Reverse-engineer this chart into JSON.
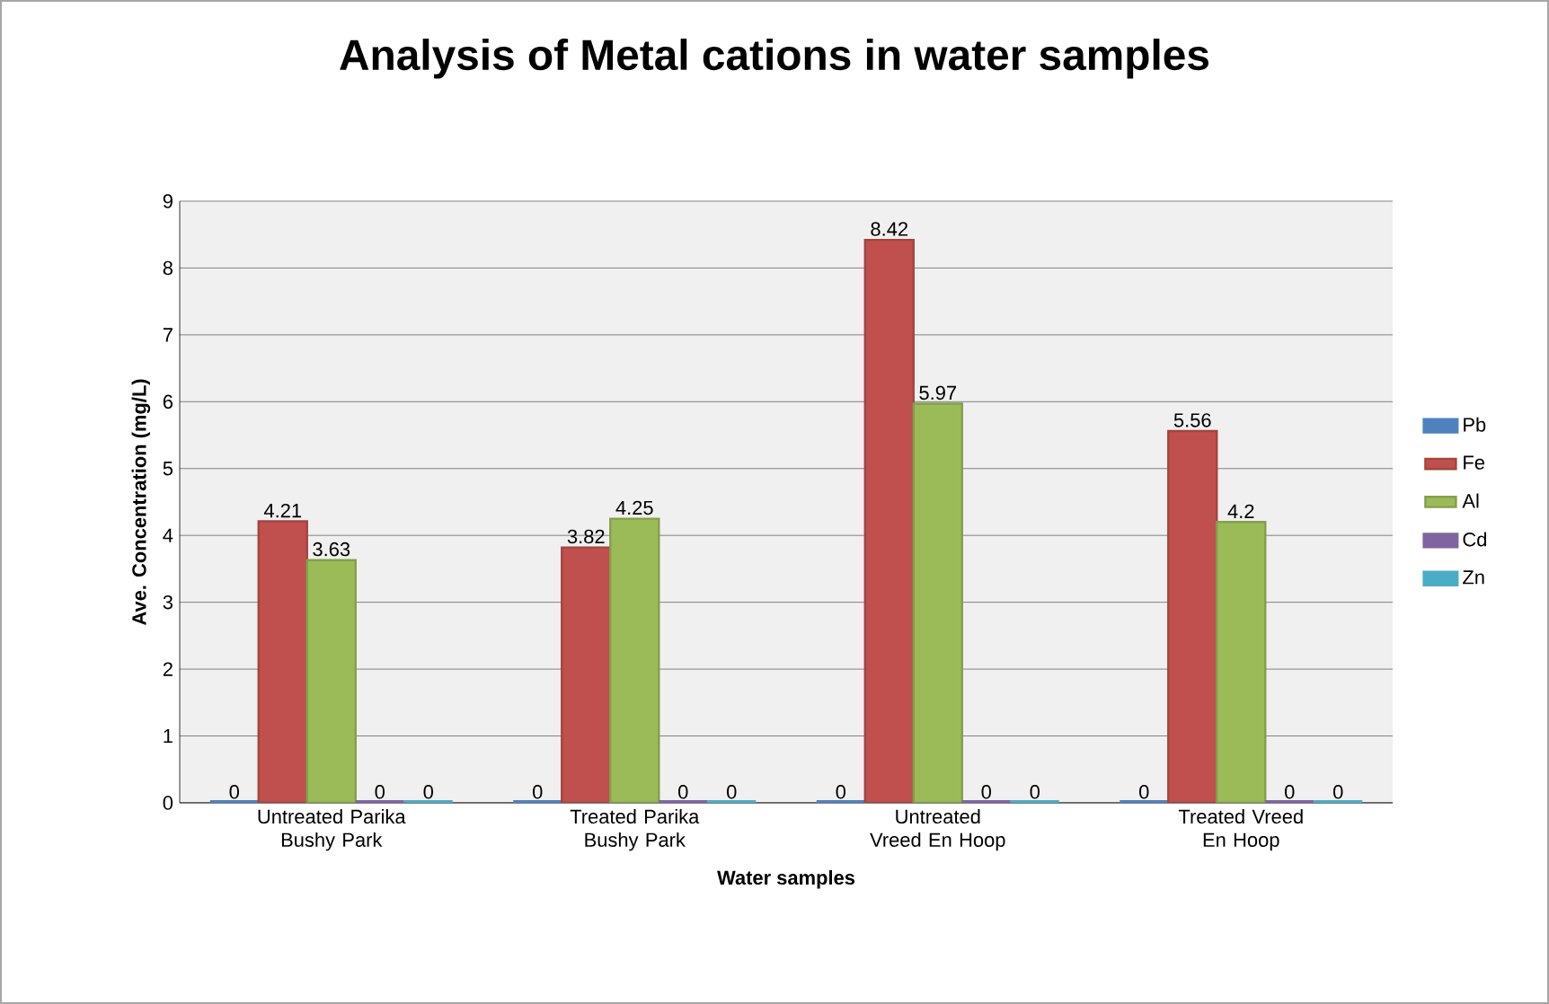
{
  "chart_data": {
    "type": "bar",
    "title": "Analysis of Metal cations in water samples",
    "xlabel": "Water samples",
    "ylabel": "Ave. Concentration (mg/L)",
    "categories": [
      "Untreated Parika Bushy Park",
      "Treated Parika Bushy Park",
      "Untreated Vreed En Hoop",
      "Treated Vreed En Hoop"
    ],
    "series": [
      {
        "name": "Pb",
        "color": "#4f81bd",
        "values": [
          0,
          0,
          0,
          0
        ]
      },
      {
        "name": "Fe",
        "color": "#c0504d",
        "values": [
          4.21,
          3.82,
          8.42,
          5.56
        ]
      },
      {
        "name": "Al",
        "color": "#9bbb59",
        "values": [
          3.63,
          4.25,
          5.97,
          4.2
        ]
      },
      {
        "name": "Cd",
        "color": "#8064a2",
        "values": [
          0,
          0,
          0,
          0
        ]
      },
      {
        "name": "Zn",
        "color": "#4bacc6",
        "values": [
          0,
          0,
          0,
          0
        ]
      }
    ],
    "ylim": [
      0,
      9
    ],
    "yticks": [
      0,
      1,
      2,
      3,
      4,
      5,
      6,
      7,
      8,
      9
    ],
    "grid": "y",
    "legend": "right",
    "data_labels": true
  }
}
